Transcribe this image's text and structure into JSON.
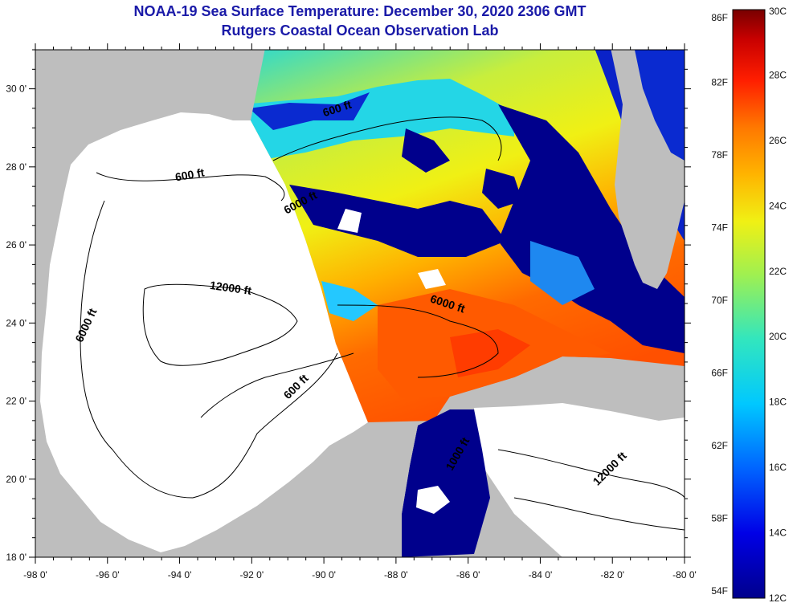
{
  "title_line1": "NOAA-19 Sea Surface Temperature:  December 30, 2020 2306 GMT",
  "title_line2": "Rutgers Coastal Ocean Observation Lab",
  "map": {
    "lon_ticks": [
      "-98 0'",
      "-96 0'",
      "-94 0'",
      "-92 0'",
      "-90 0'",
      "-88 0'",
      "-86 0'",
      "-84 0'",
      "-82 0'",
      "-80 0'"
    ],
    "lat_ticks": [
      "18 0'",
      "20 0'",
      "22 0'",
      "24 0'",
      "26 0'",
      "28 0'",
      "30 0'"
    ],
    "lon_range": [
      -98,
      -80
    ],
    "lat_range": [
      18,
      31
    ],
    "contour_labels": [
      {
        "text": "600 ft",
        "lon": -93.7,
        "lat": 27.7
      },
      {
        "text": "6000 ft",
        "lon": -90.6,
        "lat": 27.0
      },
      {
        "text": "12000 ft",
        "lon": -92.6,
        "lat": 24.8
      },
      {
        "text": "6000 ft",
        "lon": -96.5,
        "lat": 23.9
      },
      {
        "text": "600 ft",
        "lon": -89.6,
        "lat": 29.4
      },
      {
        "text": "6000 ft",
        "lon": -86.6,
        "lat": 24.4
      },
      {
        "text": "600 ft",
        "lon": -90.7,
        "lat": 22.3
      },
      {
        "text": "1000 ft",
        "lon": -86.2,
        "lat": 20.6
      },
      {
        "text": "12000 ft",
        "lon": -82.0,
        "lat": 20.2
      }
    ],
    "colors": {
      "land": "#bebebe",
      "no_data": "#ffffff",
      "cloud": "#00008c"
    }
  },
  "colorbar": {
    "f_labels": [
      "86F",
      "82F",
      "78F",
      "74F",
      "70F",
      "66F",
      "62F",
      "58F",
      "54F"
    ],
    "c_labels": [
      "30C",
      "28C",
      "26C",
      "24C",
      "22C",
      "20C",
      "18C",
      "16C",
      "14C",
      "12C"
    ],
    "c_range": [
      12,
      30
    ]
  }
}
